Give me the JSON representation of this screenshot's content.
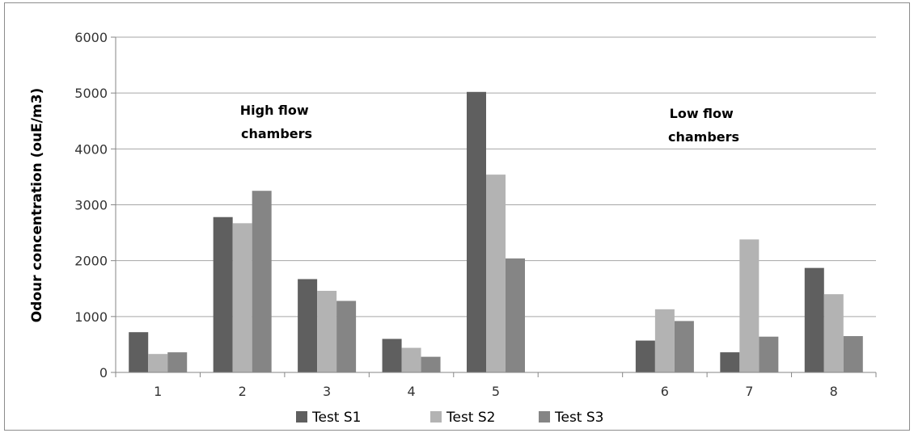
{
  "chart_data": {
    "type": "bar",
    "categories": [
      "1",
      "2",
      "3",
      "4",
      "5",
      "",
      "6",
      "7",
      "8"
    ],
    "series": [
      {
        "name": "Test S1",
        "color": "#5f5f5f",
        "values": [
          720,
          2780,
          1670,
          600,
          5020,
          null,
          570,
          360,
          1870
        ]
      },
      {
        "name": "Test S2",
        "color": "#b3b3b3",
        "values": [
          330,
          2670,
          1460,
          440,
          3540,
          null,
          1130,
          2380,
          1400
        ]
      },
      {
        "name": "Test S3",
        "color": "#858585",
        "values": [
          360,
          3250,
          1280,
          280,
          2040,
          null,
          920,
          640,
          650
        ]
      }
    ],
    "ylabel": "Odour concentration (ouE/m3)",
    "ylim": [
      0,
      6000
    ],
    "yticks": [
      0,
      1000,
      2000,
      3000,
      4000,
      5000,
      6000
    ],
    "grid": true,
    "legend": "bottom",
    "annotations": [
      {
        "lines": [
          "High flow",
          "chambers"
        ]
      },
      {
        "lines": [
          "Low flow",
          "chambers"
        ]
      }
    ]
  }
}
